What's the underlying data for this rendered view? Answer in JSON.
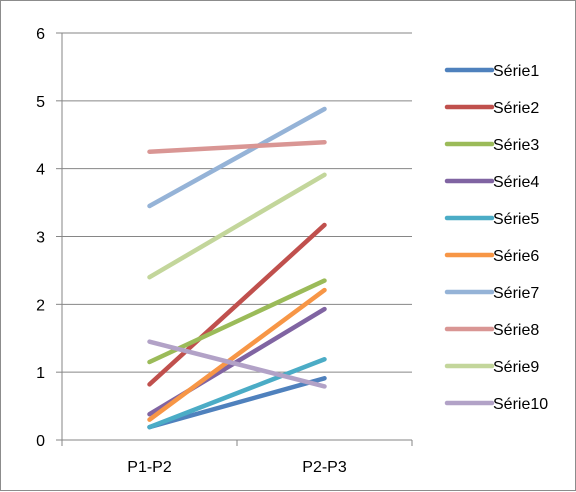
{
  "chart_data": {
    "type": "line",
    "title": "",
    "xlabel": "",
    "ylabel": "",
    "categories": [
      "P1-P2",
      "P2-P3"
    ],
    "ylim": [
      0,
      6
    ],
    "yticks": [
      0,
      1,
      2,
      3,
      4,
      5,
      6
    ],
    "grid": true,
    "legend_position": "right",
    "series": [
      {
        "name": "Série1",
        "color": "#4f81bd",
        "values": [
          0.19,
          0.91
        ]
      },
      {
        "name": "Série2",
        "color": "#c0504d",
        "values": [
          0.82,
          3.17
        ]
      },
      {
        "name": "Série3",
        "color": "#9bbb59",
        "values": [
          1.15,
          2.35
        ]
      },
      {
        "name": "Série4",
        "color": "#8064a2",
        "values": [
          0.38,
          1.93
        ]
      },
      {
        "name": "Série5",
        "color": "#4bacc6",
        "values": [
          0.19,
          1.19
        ]
      },
      {
        "name": "Série6",
        "color": "#f79646",
        "values": [
          0.3,
          2.21
        ]
      },
      {
        "name": "Série7",
        "color": "#95b3d7",
        "values": [
          3.45,
          4.88
        ]
      },
      {
        "name": "Série8",
        "color": "#d99694",
        "values": [
          4.25,
          4.39
        ]
      },
      {
        "name": "Série9",
        "color": "#c3d69b",
        "values": [
          2.4,
          3.91
        ]
      },
      {
        "name": "Série10",
        "color": "#b2a2c7",
        "values": [
          1.45,
          0.79
        ]
      }
    ]
  }
}
